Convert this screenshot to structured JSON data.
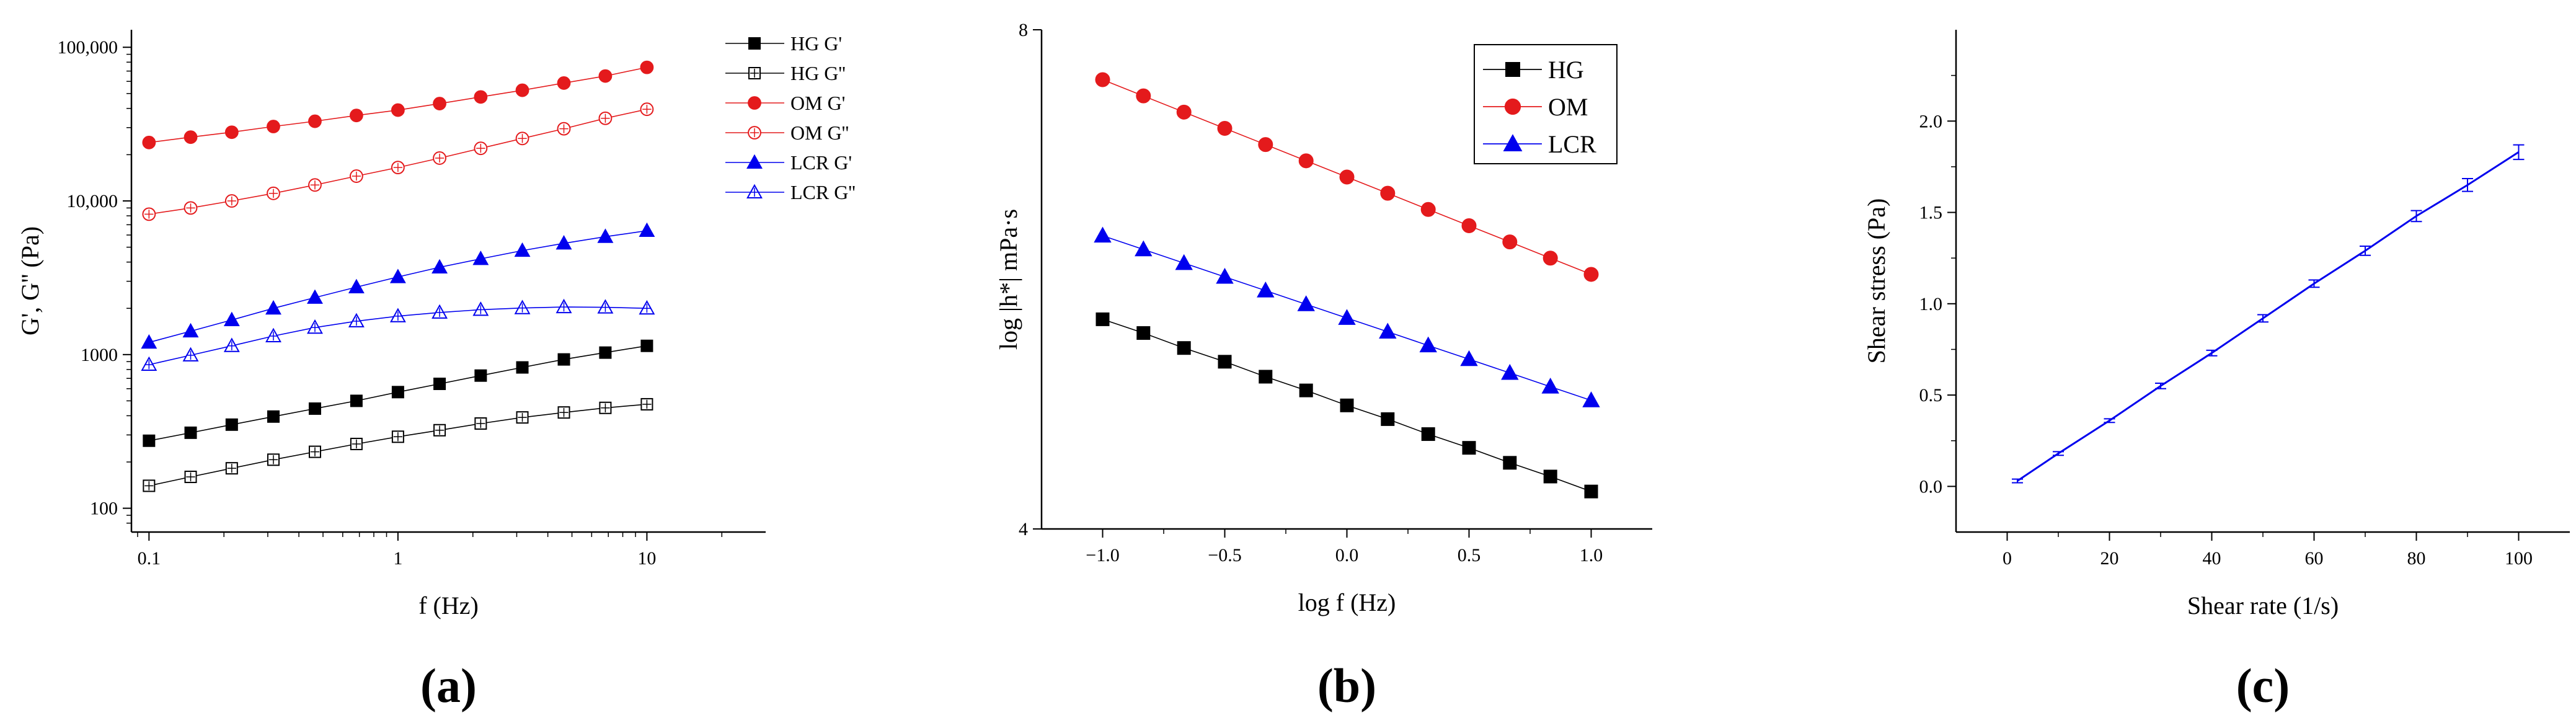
{
  "chart_data": [
    {
      "type": "line",
      "panel_label": "(a)",
      "xlabel": "f (Hz)",
      "ylabel": "G', G'' (Pa)",
      "x_scale": "log",
      "y_scale": "log",
      "xlim": [
        0.085,
        30
      ],
      "ylim": [
        70,
        130000
      ],
      "x_ticks": [
        {
          "value": 0.1,
          "label": "0.1"
        },
        {
          "value": 1,
          "label": "1"
        },
        {
          "value": 10,
          "label": "10"
        }
      ],
      "y_ticks": [
        {
          "value": 100,
          "label": "100"
        },
        {
          "value": 1000,
          "label": "1000"
        },
        {
          "value": 10000,
          "label": "10,000"
        },
        {
          "value": 100000,
          "label": "100,000"
        }
      ],
      "legend_position": "top-right",
      "x": [
        0.1,
        0.147,
        0.215,
        0.316,
        0.464,
        0.681,
        1.0,
        1.47,
        2.15,
        3.16,
        4.64,
        6.81,
        10.0
      ],
      "series": [
        {
          "name": "HG G'",
          "color": "#000000",
          "marker": "square",
          "filled": true,
          "values": [
            275,
            310,
            350,
            395,
            445,
            500,
            570,
            645,
            730,
            825,
            930,
            1030,
            1140
          ]
        },
        {
          "name": "HG G''",
          "color": "#000000",
          "marker": "square-cross",
          "filled": false,
          "values": [
            140,
            160,
            182,
            207,
            233,
            262,
            292,
            322,
            356,
            390,
            420,
            450,
            475
          ]
        },
        {
          "name": "OM  G'",
          "color": "#e41a1c",
          "marker": "circle",
          "filled": true,
          "values": [
            24000,
            26000,
            28000,
            30500,
            33000,
            36000,
            39000,
            43000,
            47500,
            52500,
            58500,
            65000,
            74000
          ]
        },
        {
          "name": "OM  G''",
          "color": "#e41a1c",
          "marker": "circle-cross",
          "filled": false,
          "values": [
            8200,
            9000,
            10000,
            11200,
            12700,
            14500,
            16500,
            19000,
            22000,
            25500,
            29500,
            34500,
            39500
          ]
        },
        {
          "name": "LCR G'",
          "color": "#0000ee",
          "marker": "triangle",
          "filled": true,
          "values": [
            1200,
            1420,
            1680,
            2000,
            2350,
            2750,
            3200,
            3700,
            4200,
            4750,
            5300,
            5850,
            6400
          ]
        },
        {
          "name": "LCR G''",
          "color": "#0000ee",
          "marker": "triangle-cross",
          "filled": false,
          "values": [
            860,
            990,
            1140,
            1320,
            1500,
            1650,
            1780,
            1880,
            1960,
            2010,
            2040,
            2030,
            2000
          ]
        }
      ]
    },
    {
      "type": "line",
      "panel_label": "(b)",
      "xlabel": "log f (Hz)",
      "ylabel": "log |h*| mPa·s",
      "xlim": [
        -1.25,
        1.25
      ],
      "ylim": [
        4,
        8
      ],
      "x_ticks": [
        {
          "value": -1.0,
          "label": "−1.0"
        },
        {
          "value": -0.5,
          "label": "−0.5"
        },
        {
          "value": 0.0,
          "label": "0.0"
        },
        {
          "value": 0.5,
          "label": "0.5"
        },
        {
          "value": 1.0,
          "label": "1.0"
        }
      ],
      "y_ticks": [
        {
          "value": 4,
          "label": "4"
        },
        {
          "value": 8,
          "label": "8"
        }
      ],
      "legend_position": "top-right",
      "x": [
        -1.0,
        -0.833,
        -0.667,
        -0.5,
        -0.333,
        -0.167,
        0.0,
        0.167,
        0.333,
        0.5,
        0.667,
        0.833,
        1.0
      ],
      "series": [
        {
          "name": "HG",
          "color": "#000000",
          "marker": "square",
          "filled": true,
          "values": [
            5.68,
            5.57,
            5.45,
            5.34,
            5.22,
            5.11,
            4.99,
            4.88,
            4.76,
            4.65,
            4.53,
            4.42,
            4.3
          ]
        },
        {
          "name": "OM",
          "color": "#e41a1c",
          "marker": "circle",
          "filled": true,
          "values": [
            7.6,
            7.47,
            7.34,
            7.21,
            7.08,
            6.95,
            6.82,
            6.69,
            6.56,
            6.43,
            6.3,
            6.17,
            6.04
          ]
        },
        {
          "name": "LCR",
          "color": "#0000ee",
          "marker": "triangle",
          "filled": true,
          "values": [
            6.35,
            6.24,
            6.13,
            6.02,
            5.91,
            5.8,
            5.69,
            5.58,
            5.47,
            5.36,
            5.25,
            5.14,
            5.03
          ]
        }
      ]
    },
    {
      "type": "line",
      "panel_label": "(c)",
      "xlabel": "Shear rate (1/s)",
      "ylabel": "Shear stress (Pa)",
      "xlim": [
        -10,
        110
      ],
      "ylim": [
        -0.25,
        2.5
      ],
      "x_ticks": [
        {
          "value": 0,
          "label": "0"
        },
        {
          "value": 20,
          "label": "20"
        },
        {
          "value": 40,
          "label": "40"
        },
        {
          "value": 60,
          "label": "60"
        },
        {
          "value": 80,
          "label": "80"
        },
        {
          "value": 100,
          "label": "100"
        }
      ],
      "y_ticks": [
        {
          "value": 0.0,
          "label": "0.0"
        },
        {
          "value": 0.5,
          "label": "0.5"
        },
        {
          "value": 1.0,
          "label": "1.0"
        },
        {
          "value": 1.5,
          "label": "1.5"
        },
        {
          "value": 2.0,
          "label": "2.0"
        }
      ],
      "x": [
        2,
        10,
        20,
        30,
        40,
        50,
        60,
        70,
        80,
        90,
        100
      ],
      "series": [
        {
          "name": "shear stress",
          "color": "#0000ee",
          "values": [
            0.03,
            0.18,
            0.36,
            0.55,
            0.73,
            0.92,
            1.11,
            1.29,
            1.48,
            1.65,
            1.83
          ],
          "error": [
            0.01,
            0.01,
            0.01,
            0.015,
            0.015,
            0.02,
            0.02,
            0.025,
            0.03,
            0.035,
            0.04
          ]
        }
      ]
    }
  ]
}
